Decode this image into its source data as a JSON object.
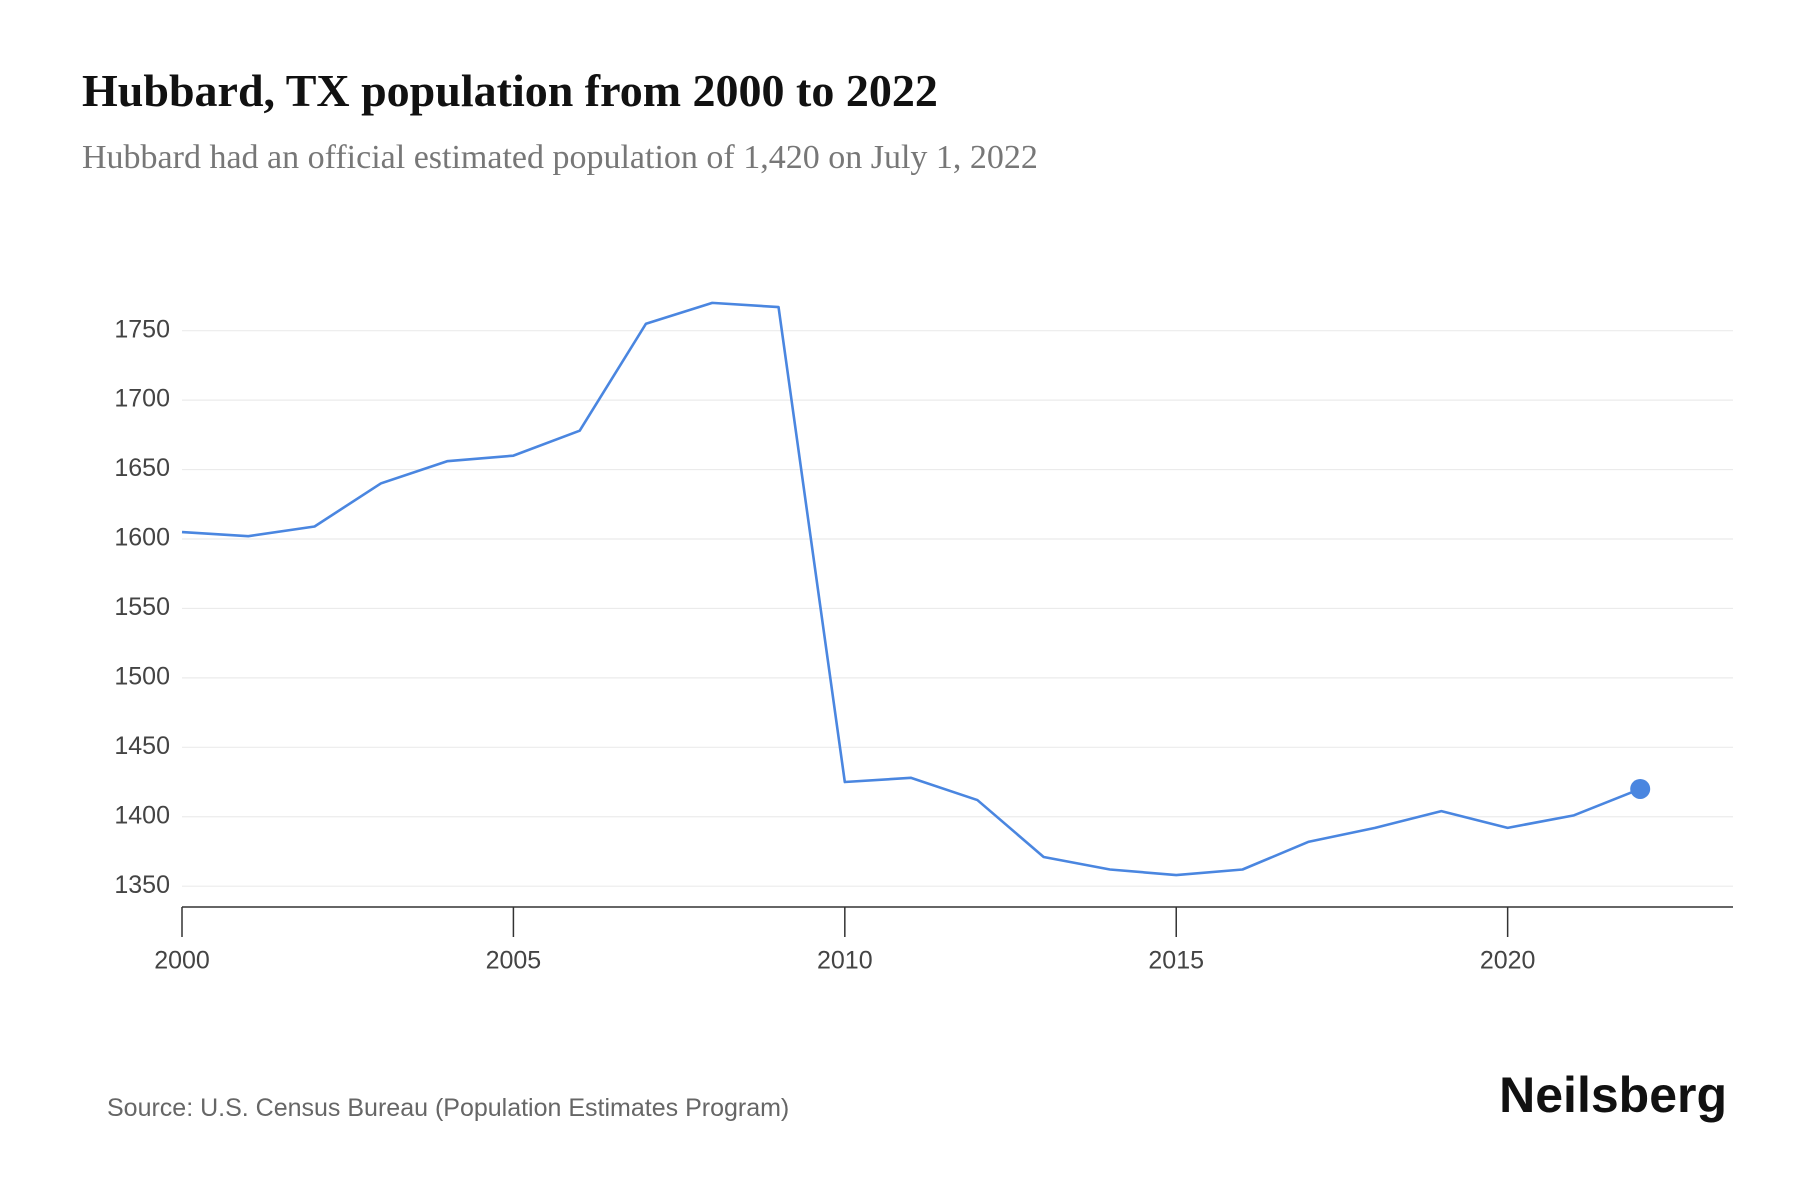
{
  "chart_data": {
    "type": "line",
    "title": "Hubbard, TX population from 2000 to 2022",
    "subtitle": "Hubbard had an official estimated population of 1,420 on July 1, 2022",
    "source": "Source: U.S. Census Bureau (Population Estimates Program)",
    "brand": "Neilsberg",
    "x": [
      2000,
      2001,
      2002,
      2003,
      2004,
      2005,
      2006,
      2007,
      2008,
      2009,
      2010,
      2011,
      2012,
      2013,
      2014,
      2015,
      2016,
      2017,
      2018,
      2019,
      2020,
      2021,
      2022
    ],
    "series": [
      {
        "name": "Population",
        "color": "#4a86e0",
        "values": [
          1605,
          1602,
          1609,
          1640,
          1656,
          1660,
          1678,
          1755,
          1770,
          1767,
          1425,
          1428,
          1412,
          1371,
          1362,
          1358,
          1362,
          1382,
          1392,
          1404,
          1392,
          1401,
          1420
        ]
      }
    ],
    "xlim": [
      2000,
      2023.4
    ],
    "xticks": [
      2000,
      2005,
      2010,
      2015,
      2020
    ],
    "ylim": [
      1335,
      1780
    ],
    "yticks": [
      1350,
      1400,
      1450,
      1500,
      1550,
      1600,
      1650,
      1700,
      1750
    ],
    "grid": true
  }
}
